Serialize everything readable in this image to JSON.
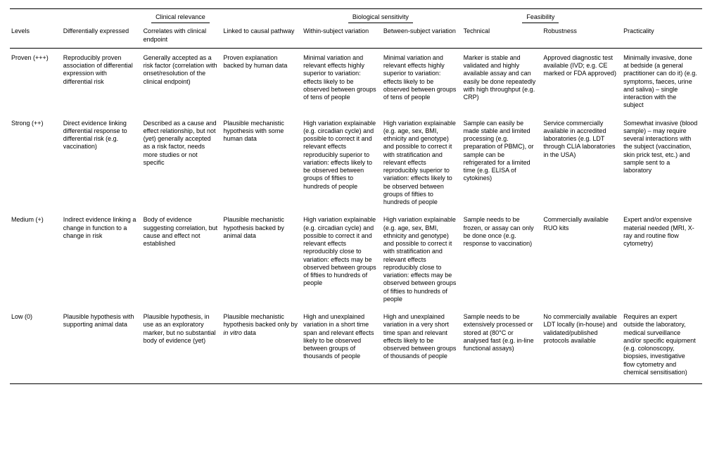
{
  "groups": {
    "g1": "Clinical relevance",
    "g2": "Biological sensitivity",
    "g3": "Feasibility"
  },
  "headers": {
    "levels": "Levels",
    "c1": "Differentially expressed",
    "c2": "Correlates with clinical endpoint",
    "c3": "Linked to causal pathway",
    "c4": "Within-subject variation",
    "c5": "Between-subject variation",
    "c6": "Technical",
    "c7": "Robustness",
    "c8": "Practicality"
  },
  "rows": [
    {
      "level": "Proven (+++)",
      "c1": "Reproducibly proven association of differential expression with differential risk",
      "c2": "Generally accepted as a risk factor (correlation with onset/resolution of the clinical endpoint)",
      "c3": "Proven explanation backed by human data",
      "c4": "Minimal variation and relevant effects highly superior to variation: effects likely to be observed between groups of tens of people",
      "c5": "Minimal variation and relevant effects highly superior to variation: effects likely to be observed between groups of tens of people",
      "c6": "Marker is stable and validated and highly available assay and can easily be done repeatedly with high throughput (e.g. CRP)",
      "c7": "Approved diagnostic test available (IVD; e.g. CE marked or FDA approved)",
      "c8": "Minimally invasive, done at bedside (a general practitioner can do it) (e.g. symptoms, faeces, urine and saliva) – single interaction with the subject"
    },
    {
      "level": "Strong (++)",
      "c1": "Direct evidence linking differential response to differential risk (e.g. vaccination)",
      "c2": "Described as a cause and effect relationship, but not (yet) generally accepted as a risk factor, needs more studies or not specific",
      "c3": "Plausible mechanistic hypothesis with some human data",
      "c4": "High variation explainable (e.g. circadian cycle) and possible to correct it and relevant effects reproducibly superior to variation: effects likely to be observed between groups of fifties to hundreds of people",
      "c5": "High variation explainable (e.g. age, sex, BMI, ethnicity and genotype) and possible to correct it with stratification and relevant effects reproducibly superior to variation: effects likely to be observed between groups of fifties to hundreds of people",
      "c6": "Sample can easily be made stable and limited processing (e.g. preparation of PBMC), or sample can be refrigerated for a limited time (e.g. ELISA of cytokines)",
      "c7": "Service commercially available in accredited laboratories (e.g. LDT through CLIA laboratories in the USA)",
      "c8": "Somewhat invasive (blood sample) – may require several interactions with the subject (vaccination, skin prick test, etc.) and sample sent to a laboratory"
    },
    {
      "level": "Medium (+)",
      "c1": "Indirect evidence linking a change in function to a change in risk",
      "c2": "Body of evidence suggesting correlation, but cause and effect not established",
      "c3": "Plausible mechanistic hypothesis backed by animal data",
      "c4": "High variation explainable (e.g. circadian cycle) and possible to correct it and relevant effects reproducibly close to variation: effects may be observed between groups of fifties to hundreds of people",
      "c5": "High variation explainable (e.g. age, sex, BMI, ethnicity and genotype) and possible to correct it with stratification and relevant effects reproducibly close to variation: effects may be observed between groups of fifties to hundreds of people",
      "c6": "Sample needs to be frozen, or assay can only be done once (e.g. response to vaccination)",
      "c7": "Commercially available RUO kits",
      "c8": "Expert and/or expensive material needed (MRI, X-ray and routine flow cytometry)"
    },
    {
      "level": "Low (0)",
      "c1": "Plausible hypothesis with supporting animal data",
      "c2": "Plausible hypothesis, in use as an exploratory marker, but no substantial body of evidence (yet)",
      "c3_html": "Plausible mechanistic hypothesis backed only by <span class=\"italic\">in vitro</span> data",
      "c4": "High and unexplained variation in a short time span and relevant effects likely to be observed between groups of thousands of people",
      "c5": "High and unexplained variation in a very short time span and relevant effects likely to be observed between groups of thousands of people",
      "c6": "Sample needs to be extensively processed or stored at (80°C or analysed fast (e.g. in-line functional assays)",
      "c7": "No commercially available LDT locally (in-house) and validated/published protocols available",
      "c8": "Requires an expert outside the laboratory, medical surveillance and/or specific equipment (e.g. colonoscopy, biopsies, investigative flow cytometry and chemical sensitisation)"
    }
  ]
}
